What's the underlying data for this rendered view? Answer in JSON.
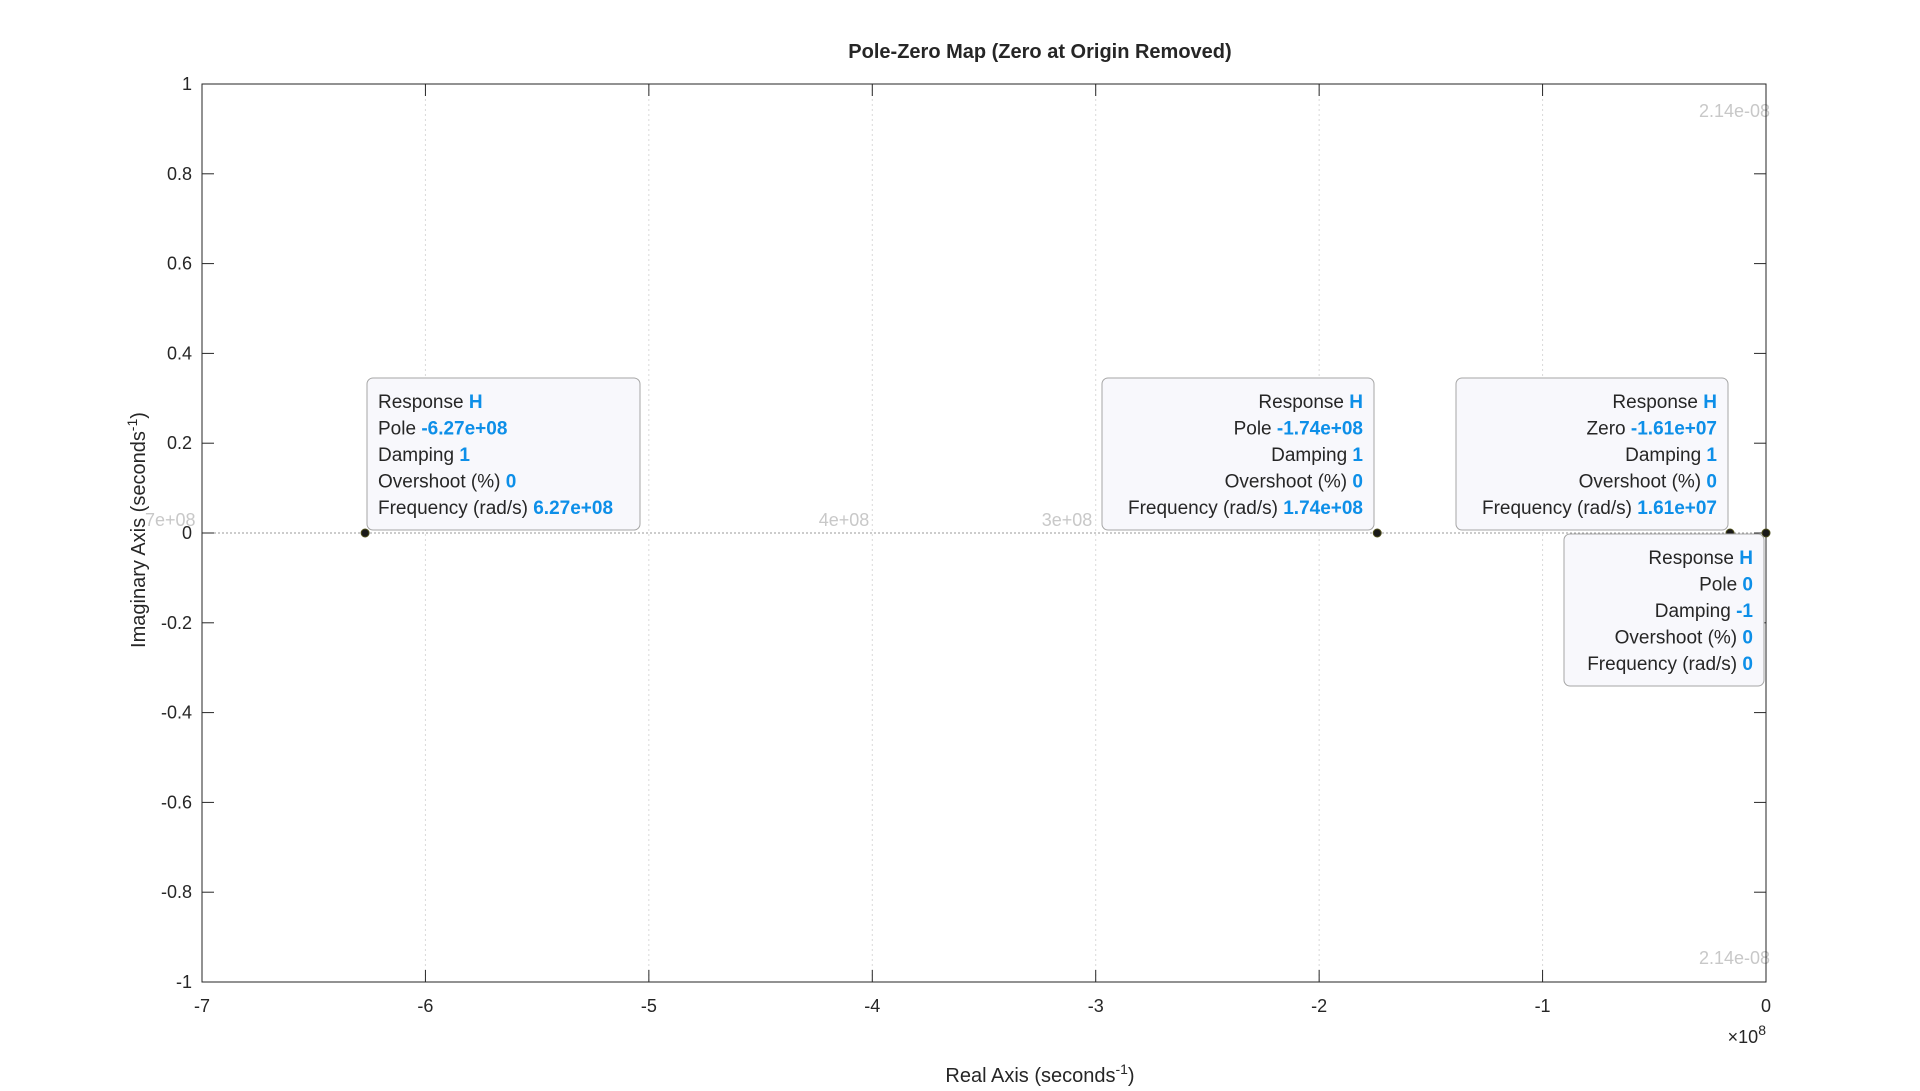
{
  "chart_data": {
    "type": "scatter",
    "title": "Pole-Zero Map (Zero at Origin Removed)",
    "xlabel": "Real Axis (seconds",
    "xlabel_sup": "-1",
    "xlabel_close": ")",
    "ylabel": "Imaginary Axis (seconds",
    "ylabel_sup": "-1",
    "ylabel_close": ")",
    "xlim": [
      -7,
      0
    ],
    "ylim": [
      -1,
      1
    ],
    "x_exponent_prefix": "×10",
    "x_exponent_power": "8",
    "xticks": [
      "-7",
      "-6",
      "-5",
      "-4",
      "-3",
      "-2",
      "-1",
      "0"
    ],
    "yticks": [
      "1",
      "0.8",
      "0.6",
      "0.4",
      "0.2",
      "0",
      "-0.2",
      "-0.4",
      "-0.6",
      "-0.8",
      "-1"
    ],
    "grid": true,
    "points": [
      {
        "x": -6.27,
        "y": 0
      },
      {
        "x": -1.74,
        "y": 0
      },
      {
        "x": -0.161,
        "y": 0
      },
      {
        "x": 0,
        "y": 0
      }
    ],
    "damping_labels": [
      {
        "text": "2.14e-08"
      },
      {
        "text": "2.14e-08"
      },
      {
        "text": "7e+08"
      },
      {
        "text": "3"
      },
      {
        "text": "4e+08"
      },
      {
        "text": "3e+08"
      }
    ],
    "datatips": [
      {
        "rows": [
          [
            "Response ",
            "H"
          ],
          [
            "Pole ",
            "-6.27e+08"
          ],
          [
            "Damping ",
            "1"
          ],
          [
            "Overshoot (%) ",
            "0"
          ],
          [
            "Frequency (rad/s) ",
            "6.27e+08"
          ]
        ]
      },
      {
        "rows": [
          [
            "Response ",
            "H"
          ],
          [
            "Pole ",
            "-1.74e+08"
          ],
          [
            "Damping ",
            "1"
          ],
          [
            "Overshoot (%) ",
            "0"
          ],
          [
            "Frequency (rad/s) ",
            "1.74e+08"
          ]
        ]
      },
      {
        "rows": [
          [
            "Response ",
            "H"
          ],
          [
            "Zero ",
            "-1.61e+07"
          ],
          [
            "Damping ",
            "1"
          ],
          [
            "Overshoot (%) ",
            "0"
          ],
          [
            "Frequency (rad/s) ",
            "1.61e+07"
          ]
        ]
      },
      {
        "rows": [
          [
            "Response ",
            "H"
          ],
          [
            "Pole ",
            "0"
          ],
          [
            "Damping ",
            "-1"
          ],
          [
            "Overshoot (%) ",
            "0"
          ],
          [
            "Frequency (rad/s) ",
            "0"
          ]
        ]
      }
    ]
  }
}
